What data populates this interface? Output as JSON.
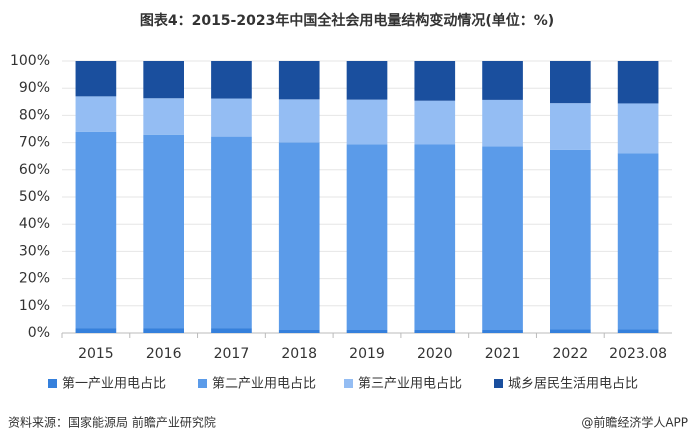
{
  "chart_data": {
    "type": "stacked_bar",
    "title": "图表4：2015-2023年中国全社会用电量结构变动情况(单位：%)",
    "categories": [
      "2015",
      "2016",
      "2017",
      "2018",
      "2019",
      "2020",
      "2021",
      "2022",
      "2023.08"
    ],
    "series": [
      {
        "name": "第一产业用电占比",
        "color": "#3580dc",
        "values": [
          1.8,
          1.8,
          1.8,
          1.1,
          1.1,
          1.1,
          1.1,
          1.3,
          1.3
        ]
      },
      {
        "name": "第二产业用电占比",
        "color": "#5b9be9",
        "values": [
          72.2,
          71.1,
          70.4,
          69.0,
          68.3,
          68.2,
          67.5,
          66.0,
          64.8
        ]
      },
      {
        "name": "第三产业用电占比",
        "color": "#94bdf3",
        "values": [
          13.0,
          13.4,
          14.0,
          15.8,
          16.4,
          16.1,
          17.1,
          17.2,
          18.3
        ]
      },
      {
        "name": "城乡居民生活用电占比",
        "color": "#1a4f9e",
        "values": [
          13.0,
          13.7,
          13.8,
          14.1,
          14.2,
          14.6,
          14.3,
          15.5,
          15.6
        ]
      }
    ],
    "ylim": [
      0,
      100
    ],
    "yticks": [
      {
        "value": 0,
        "label": "0%"
      },
      {
        "value": 10,
        "label": "10%"
      },
      {
        "value": 20,
        "label": "20%"
      },
      {
        "value": 30,
        "label": "30%"
      },
      {
        "value": 40,
        "label": "40%"
      },
      {
        "value": 50,
        "label": "50%"
      },
      {
        "value": 60,
        "label": "60%"
      },
      {
        "value": 70,
        "label": "70%"
      },
      {
        "value": 80,
        "label": "80%"
      },
      {
        "value": 90,
        "label": "90%"
      },
      {
        "value": 100,
        "label": "100%"
      }
    ],
    "grid": true,
    "source": "资料来源：国家能源局 前瞻产业研究院",
    "credit": "@前瞻经济学人APP"
  }
}
